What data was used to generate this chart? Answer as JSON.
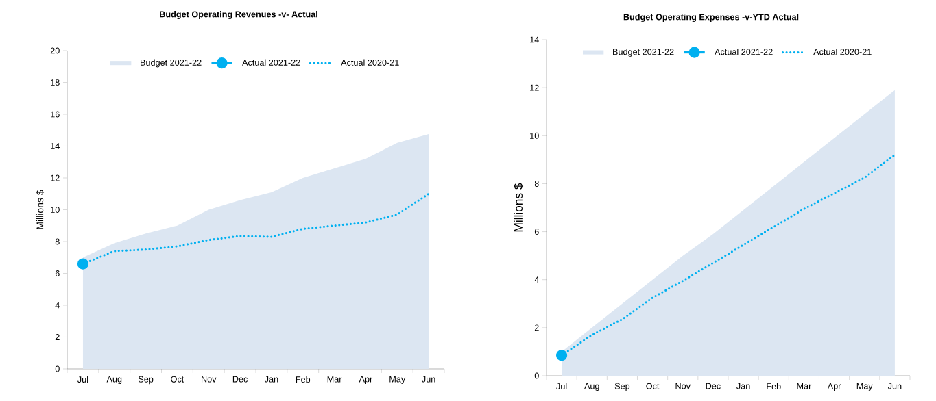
{
  "chart_data": [
    {
      "type": "line",
      "title": "Budget Operating Revenues -v- Actual",
      "ylabel": "Millions $",
      "categories": [
        "Jul",
        "Aug",
        "Sep",
        "Oct",
        "Nov",
        "Dec",
        "Jan",
        "Feb",
        "Mar",
        "Apr",
        "May",
        "Jun"
      ],
      "series": [
        {
          "name": "Budget 2021-22",
          "type": "area",
          "color": "#dce6f2",
          "values": [
            7.0,
            7.9,
            8.5,
            9.0,
            10.0,
            10.6,
            11.1,
            12.0,
            12.6,
            13.2,
            14.2,
            14.75
          ]
        },
        {
          "name": "Actual 2021-22",
          "color": "#00b0f0",
          "marker": "circle",
          "line_style": "solid",
          "values": [
            6.6,
            null,
            null,
            null,
            null,
            null,
            null,
            null,
            null,
            null,
            null,
            null
          ]
        },
        {
          "name": "Actual 2020-21",
          "color": "#00b0f0",
          "marker": "none",
          "line_style": "dotted",
          "values": [
            6.6,
            7.4,
            7.5,
            7.7,
            8.1,
            8.35,
            8.3,
            8.8,
            9.0,
            9.2,
            9.7,
            11.0
          ]
        }
      ],
      "ylim": [
        0,
        20
      ],
      "yticks": [
        0,
        2,
        4,
        6,
        8,
        10,
        12,
        14,
        16,
        18,
        20
      ],
      "legend": "top"
    },
    {
      "type": "line",
      "title": "Budget Operating Expenses -v-YTD Actual",
      "ylabel": "Millions $",
      "categories": [
        "Jul",
        "Aug",
        "Sep",
        "Oct",
        "Nov",
        "Dec",
        "Jan",
        "Feb",
        "Mar",
        "Apr",
        "May",
        "Jun"
      ],
      "series": [
        {
          "name": "Budget 2021-22",
          "type": "area",
          "color": "#dce6f2",
          "values": [
            1.0,
            2.0,
            3.0,
            4.0,
            5.0,
            5.9,
            6.9,
            7.9,
            8.9,
            9.9,
            10.9,
            11.9
          ]
        },
        {
          "name": "Actual 2021-22",
          "color": "#00b0f0",
          "marker": "circle",
          "line_style": "solid",
          "values": [
            0.85,
            null,
            null,
            null,
            null,
            null,
            null,
            null,
            null,
            null,
            null,
            null
          ]
        },
        {
          "name": "Actual 2020-21",
          "color": "#00b0f0",
          "marker": "none",
          "line_style": "dotted",
          "values": [
            0.85,
            1.7,
            2.35,
            3.25,
            3.95,
            4.7,
            5.45,
            6.2,
            6.95,
            7.6,
            8.25,
            9.2
          ]
        }
      ],
      "ylim": [
        0,
        14
      ],
      "yticks": [
        0,
        2,
        4,
        6,
        8,
        10,
        12,
        14
      ],
      "legend": "top"
    }
  ]
}
